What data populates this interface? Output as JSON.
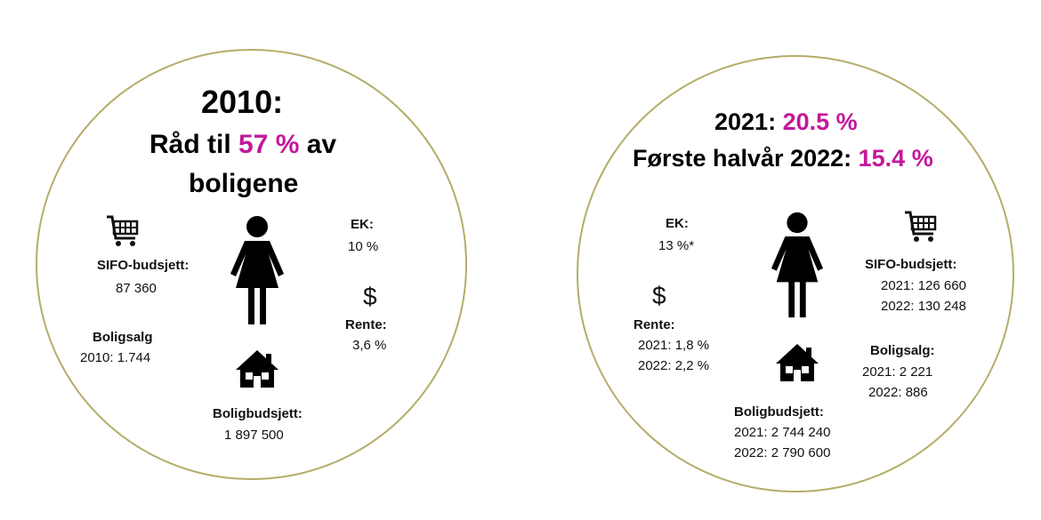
{
  "accent_color": "#c2189b",
  "circle_border_color": "#b5ad6a",
  "left": {
    "year_title": "2010:",
    "subtitle_pre": "Råd til ",
    "subtitle_pct": "57 %",
    "subtitle_post": " av",
    "subtitle_line2": "boligene",
    "ek_label": "EK:",
    "ek_value": "10 %",
    "sifo_label": "SIFO-budsjett:",
    "sifo_value": "87 360",
    "rente_label": "Rente:",
    "rente_value": "3,6 %",
    "boligsalg_label": "Boligsalg",
    "boligsalg_value": "2010: 1.744",
    "boligbudsjett_label": "Boligbudsjett:",
    "boligbudsjett_value": "1 897 500",
    "icons": [
      "shopping-cart-icon",
      "woman-icon",
      "dollar-icon",
      "house-icon"
    ]
  },
  "right": {
    "title1_pre": "2021: ",
    "title1_pct": "20.5 %",
    "title2_pre": "Første halvår 2022: ",
    "title2_pct": "15.4 %",
    "ek_label": "EK:",
    "ek_value": "13 %*",
    "sifo_label": "SIFO-budsjett:",
    "sifo_2021": "2021: 126 660",
    "sifo_2022": "2022: 130 248",
    "rente_label": "Rente:",
    "rente_2021": "2021: 1,8 %",
    "rente_2022": "2022: 2,2 %",
    "boligsalg_label": "Boligsalg:",
    "boligsalg_2021": "2021:  2 221",
    "boligsalg_2022": "2022:  886",
    "boligbudsjett_label": "Boligbudsjett:",
    "boligbudsjett_2021": "2021: 2 744 240",
    "boligbudsjett_2022": "2022: 2 790 600",
    "icons": [
      "shopping-cart-icon",
      "woman-icon",
      "dollar-icon",
      "house-icon"
    ]
  }
}
